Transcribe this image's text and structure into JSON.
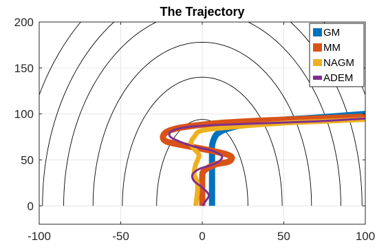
{
  "chart_data": {
    "type": "line",
    "title": "The Trajectory",
    "xlabel": "",
    "ylabel": "",
    "xlim": [
      -100,
      100
    ],
    "ylim": [
      -20,
      200
    ],
    "xticks": [
      -100,
      -50,
      0,
      50,
      100
    ],
    "yticks": [
      0,
      50,
      100,
      150,
      200
    ],
    "grid": true,
    "legend_position": "top-right",
    "contour_line_color": "#000000",
    "contours": [
      {
        "a": 28,
        "b": 94
      },
      {
        "a": 49,
        "b": 140
      },
      {
        "a": 67,
        "b": 178
      },
      {
        "a": 85,
        "b": 212
      },
      {
        "a": 98,
        "b": 240
      },
      {
        "a": 112,
        "b": 268
      }
    ],
    "series": [
      {
        "name": "GM",
        "color": "#0072BD",
        "width": 9,
        "x": [
          6,
          6,
          6,
          6,
          6,
          7,
          9,
          14,
          25,
          45,
          70,
          100
        ],
        "y": [
          0,
          20,
          40,
          55,
          65,
          72,
          78,
          83,
          88,
          93,
          96,
          100
        ]
      },
      {
        "name": "MM",
        "color": "#D95319",
        "width": 9,
        "x": [
          0,
          0,
          0,
          1,
          8,
          16,
          18,
          13,
          0,
          -12,
          -22,
          -24,
          -20,
          -10,
          10,
          40,
          70,
          100
        ],
        "y": [
          0,
          15,
          30,
          38,
          45,
          48,
          53,
          57,
          62,
          66,
          70,
          76,
          82,
          86,
          90,
          93,
          95,
          97
        ]
      },
      {
        "name": "NAGM",
        "color": "#EDB120",
        "width": 7,
        "x": [
          -4,
          -3,
          -3,
          -5,
          -4,
          -2,
          -5,
          -7,
          -5,
          0,
          20,
          50,
          75,
          100
        ],
        "y": [
          0,
          15,
          25,
          35,
          45,
          55,
          62,
          68,
          75,
          82,
          86,
          90,
          92,
          94
        ]
      },
      {
        "name": "ADEM",
        "color": "#7E2F8E",
        "width": 3,
        "x": [
          0,
          2,
          4,
          0,
          -5,
          -6,
          -2,
          5,
          10,
          12,
          6,
          -4,
          -14,
          -20,
          -18,
          -8,
          10,
          40,
          70,
          100
        ],
        "y": [
          0,
          5,
          12,
          20,
          27,
          34,
          40,
          44,
          48,
          54,
          60,
          64,
          70,
          76,
          82,
          86,
          88,
          90,
          92,
          95
        ]
      }
    ]
  }
}
